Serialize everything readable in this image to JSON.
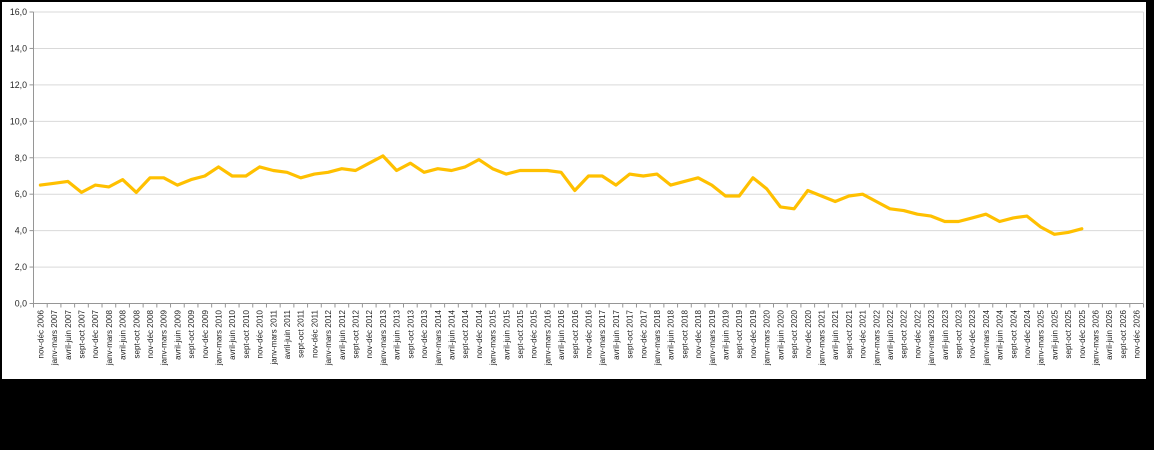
{
  "chart_data": {
    "type": "line",
    "title": "",
    "xlabel": "",
    "ylabel": "",
    "ylim": [
      0,
      16
    ],
    "y_tick_step": 2,
    "y_tick_labels": [
      "0,0",
      "2,0",
      "4,0",
      "6,0",
      "8,0",
      "10,0",
      "12,0",
      "14,0",
      "16,0"
    ],
    "grid": true,
    "legend": "none",
    "line_color": "#FFC000",
    "gridline_color": "#D9D9D9",
    "axis_color": "#969696",
    "label_color": "#262626",
    "categories": [
      "nov-déc 2006",
      "janv-mars 2007",
      "avril-juin 2007",
      "sept-oct 2007",
      "nov-déc 2007",
      "janv-mars 2008",
      "avril-juin 2008",
      "sept-oct 2008",
      "nov-déc 2008",
      "janv-mars 2009",
      "avril-juin 2009",
      "sept-oct 2009",
      "nov-déc 2009",
      "janv-mars 2010",
      "avril-juin 2010",
      "sept-oct 2010",
      "nov-déc 2010",
      "janv-mars 2011",
      "avril-juin 2011",
      "sept-oct 2011",
      "nov-déc 2011",
      "janv-mars 2012",
      "avril-juin 2012",
      "sept-oct 2012",
      "nov-déc 2012",
      "janv-mars 2013",
      "avril-juin 2013",
      "sept-oct 2013",
      "nov-déc 2013",
      "janv-mars 2014",
      "avril-juin 2014",
      "sept-oct 2014",
      "nov-déc 2014",
      "janv-mars 2015",
      "avril-juin 2015",
      "sept-oct 2015",
      "nov-déc 2015",
      "janv-mars 2016",
      "avril-juin 2016",
      "sept-oct 2016",
      "nov-déc 2016",
      "janv-mars 2017",
      "avril-juin 2017",
      "sept-oct 2017",
      "nov-déc 2017",
      "janv-mars 2018",
      "avril-juin 2018",
      "sept-oct 2018",
      "nov-déc 2018",
      "janv-mars 2019",
      "avril-juin 2019",
      "sept-oct 2019",
      "nov-déc 2019",
      "janv-mars 2020",
      "avril-juin 2020",
      "sept-oct 2020",
      "nov-déc 2020",
      "janv-mars 2021",
      "avril-juin 2021",
      "sept-oct 2021",
      "nov-déc 2021",
      "janv-mars 2022",
      "avril-juin 2022",
      "sept-oct 2022",
      "nov-déc 2022",
      "janv-mars 2023",
      "avril-juin 2023",
      "sept-oct 2023",
      "nov-déc 2023",
      "janv-mars 2024",
      "avril-juin 2024",
      "sept-oct 2024",
      "nov-déc 2024",
      "janv-mars 2025",
      "avril-juin 2025",
      "sept-oct 2025",
      "nov-déc 2025",
      "janv-mars 2026",
      "avril-juin 2026",
      "sept-oct 2026",
      "nov-déc 2026"
    ],
    "values": [
      6.5,
      6.6,
      6.7,
      6.1,
      6.5,
      6.4,
      6.8,
      6.1,
      6.9,
      6.9,
      6.5,
      6.8,
      7.0,
      7.5,
      7.0,
      7.0,
      7.5,
      7.3,
      7.2,
      6.9,
      7.1,
      7.2,
      7.4,
      7.3,
      7.7,
      8.1,
      7.3,
      7.7,
      7.2,
      7.4,
      7.3,
      7.5,
      7.9,
      7.4,
      7.1,
      7.3,
      7.3,
      7.3,
      7.2,
      6.2,
      7.0,
      7.0,
      6.5,
      7.1,
      7.0,
      7.1,
      6.5,
      6.7,
      6.9,
      6.5,
      5.9,
      5.9,
      6.9,
      6.3,
      5.3,
      5.2,
      6.2,
      5.9,
      5.6,
      5.9,
      6.0,
      5.6,
      5.2,
      5.1,
      4.9,
      4.8,
      4.5,
      4.5,
      4.7,
      4.9,
      4.5,
      4.7,
      4.8,
      4.2,
      3.8,
      3.9,
      4.1,
      null,
      null,
      null,
      null
    ]
  }
}
